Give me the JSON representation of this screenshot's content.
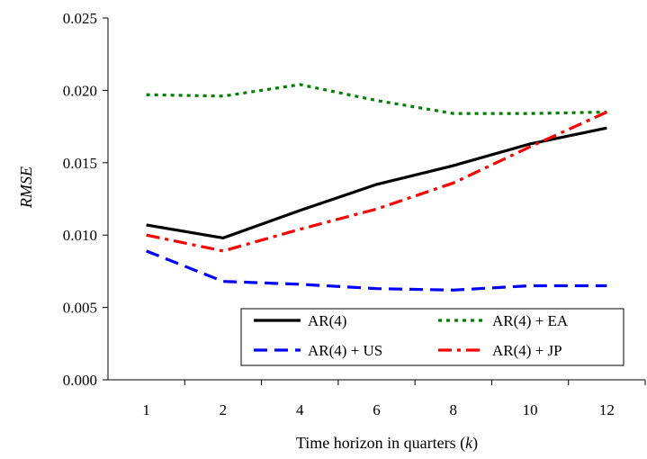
{
  "chart_data": {
    "type": "line",
    "title": "",
    "xlabel": "Time horizon in quarters (",
    "xlabel_var": "k",
    "xlabel_close": ")",
    "ylabel": "RMSE",
    "categories": [
      "1",
      "2",
      "4",
      "6",
      "8",
      "10",
      "12"
    ],
    "ylim": [
      0,
      0.025
    ],
    "yticks": [
      "0.000",
      "0.005",
      "0.010",
      "0.015",
      "0.020",
      "0.025"
    ],
    "grid": false,
    "legend_position": "bottom-right",
    "series": [
      {
        "name": "AR(4)",
        "color": "#000000",
        "style": "solid",
        "values": [
          0.0107,
          0.0098,
          0.0117,
          0.0135,
          0.0148,
          0.0163,
          0.0174
        ]
      },
      {
        "name": "AR(4) + EA",
        "color": "#008000",
        "style": "dotted",
        "values": [
          0.0197,
          0.0196,
          0.0204,
          0.0193,
          0.0184,
          0.0184,
          0.0185
        ]
      },
      {
        "name": "AR(4) + US",
        "color": "#0000ff",
        "style": "dashed",
        "values": [
          0.0089,
          0.0068,
          0.0066,
          0.0063,
          0.0062,
          0.0065,
          0.0065
        ]
      },
      {
        "name": "AR(4) + JP",
        "color": "#ff0000",
        "style": "dashdot",
        "values": [
          0.01,
          0.0089,
          0.0104,
          0.0118,
          0.0136,
          0.0161,
          0.0185
        ]
      }
    ]
  }
}
